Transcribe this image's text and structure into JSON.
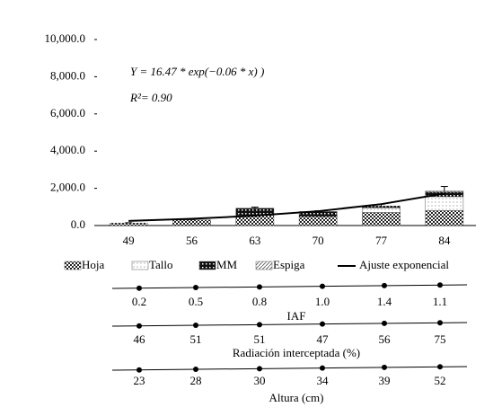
{
  "chart_data": {
    "type": "bar",
    "categories": [
      "49",
      "56",
      "63",
      "70",
      "77",
      "84"
    ],
    "series": [
      {
        "name": "Hoja",
        "color": "#222222",
        "values": [
          130,
          300,
          550,
          500,
          700,
          800
        ]
      },
      {
        "name": "Tallo",
        "color": "#888888",
        "values": [
          0,
          0,
          0,
          0,
          250,
          750
        ]
      },
      {
        "name": "MM",
        "color": "#111111",
        "values": [
          0,
          0,
          380,
          250,
          100,
          250
        ]
      },
      {
        "name": "Espiga",
        "color": "#555555",
        "values": [
          0,
          0,
          0,
          0,
          0,
          50
        ]
      }
    ],
    "errors": [
      20,
      30,
      60,
      40,
      100,
      250
    ],
    "fit": {
      "name": "Ajuste exponencial",
      "color": "#000000",
      "values": [
        250,
        360,
        530,
        770,
        1150,
        1720
      ]
    },
    "equation": "Y = 16.47 * exp(−0.06 * x) )",
    "r2_label": "R²= 0.90",
    "ylim": [
      0,
      10000
    ],
    "yticks": [
      {
        "value": 0,
        "label": "0.0"
      },
      {
        "value": 2000,
        "label": "2,000.0"
      },
      {
        "value": 4000,
        "label": "4,000.0"
      },
      {
        "value": 6000,
        "label": "6,000.0"
      },
      {
        "value": 8000,
        "label": "8,000.0"
      },
      {
        "value": 10000,
        "label": "10,000.0"
      }
    ],
    "lower_axes": [
      {
        "label": "IAF",
        "values": [
          "0.2",
          "0.5",
          "0.8",
          "1.0",
          "1.4",
          "1.1"
        ]
      },
      {
        "label": "Radiación interceptada (%)",
        "values": [
          "46",
          "51",
          "51",
          "47",
          "56",
          "75"
        ]
      },
      {
        "label": "Altura (cm)",
        "values": [
          "23",
          "28",
          "30",
          "34",
          "39",
          "52"
        ]
      }
    ]
  }
}
